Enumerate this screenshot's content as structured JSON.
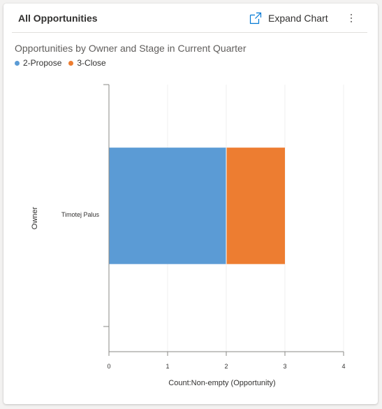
{
  "card": {
    "title": "All Opportunities",
    "expand_label": "Expand Chart",
    "expand_icon": "expand-icon",
    "more_icon": "more-vertical-icon"
  },
  "colors": {
    "series_propose": "#5b9bd5",
    "series_close": "#ed7d31"
  },
  "chart_data": {
    "type": "bar",
    "orientation": "horizontal",
    "stacked": true,
    "title": "Opportunities by Owner and Stage in Current Quarter",
    "xlabel": "Count:Non-empty (Opportunity)",
    "ylabel": "Owner",
    "categories": [
      "Timotej Palus"
    ],
    "series": [
      {
        "name": "2-Propose",
        "values": [
          2
        ]
      },
      {
        "name": "3-Close",
        "values": [
          1
        ]
      }
    ],
    "xlim": [
      0,
      4
    ],
    "xticks": [
      "0",
      "1",
      "2",
      "3",
      "4"
    ],
    "grid": true,
    "legend": "top-left"
  }
}
